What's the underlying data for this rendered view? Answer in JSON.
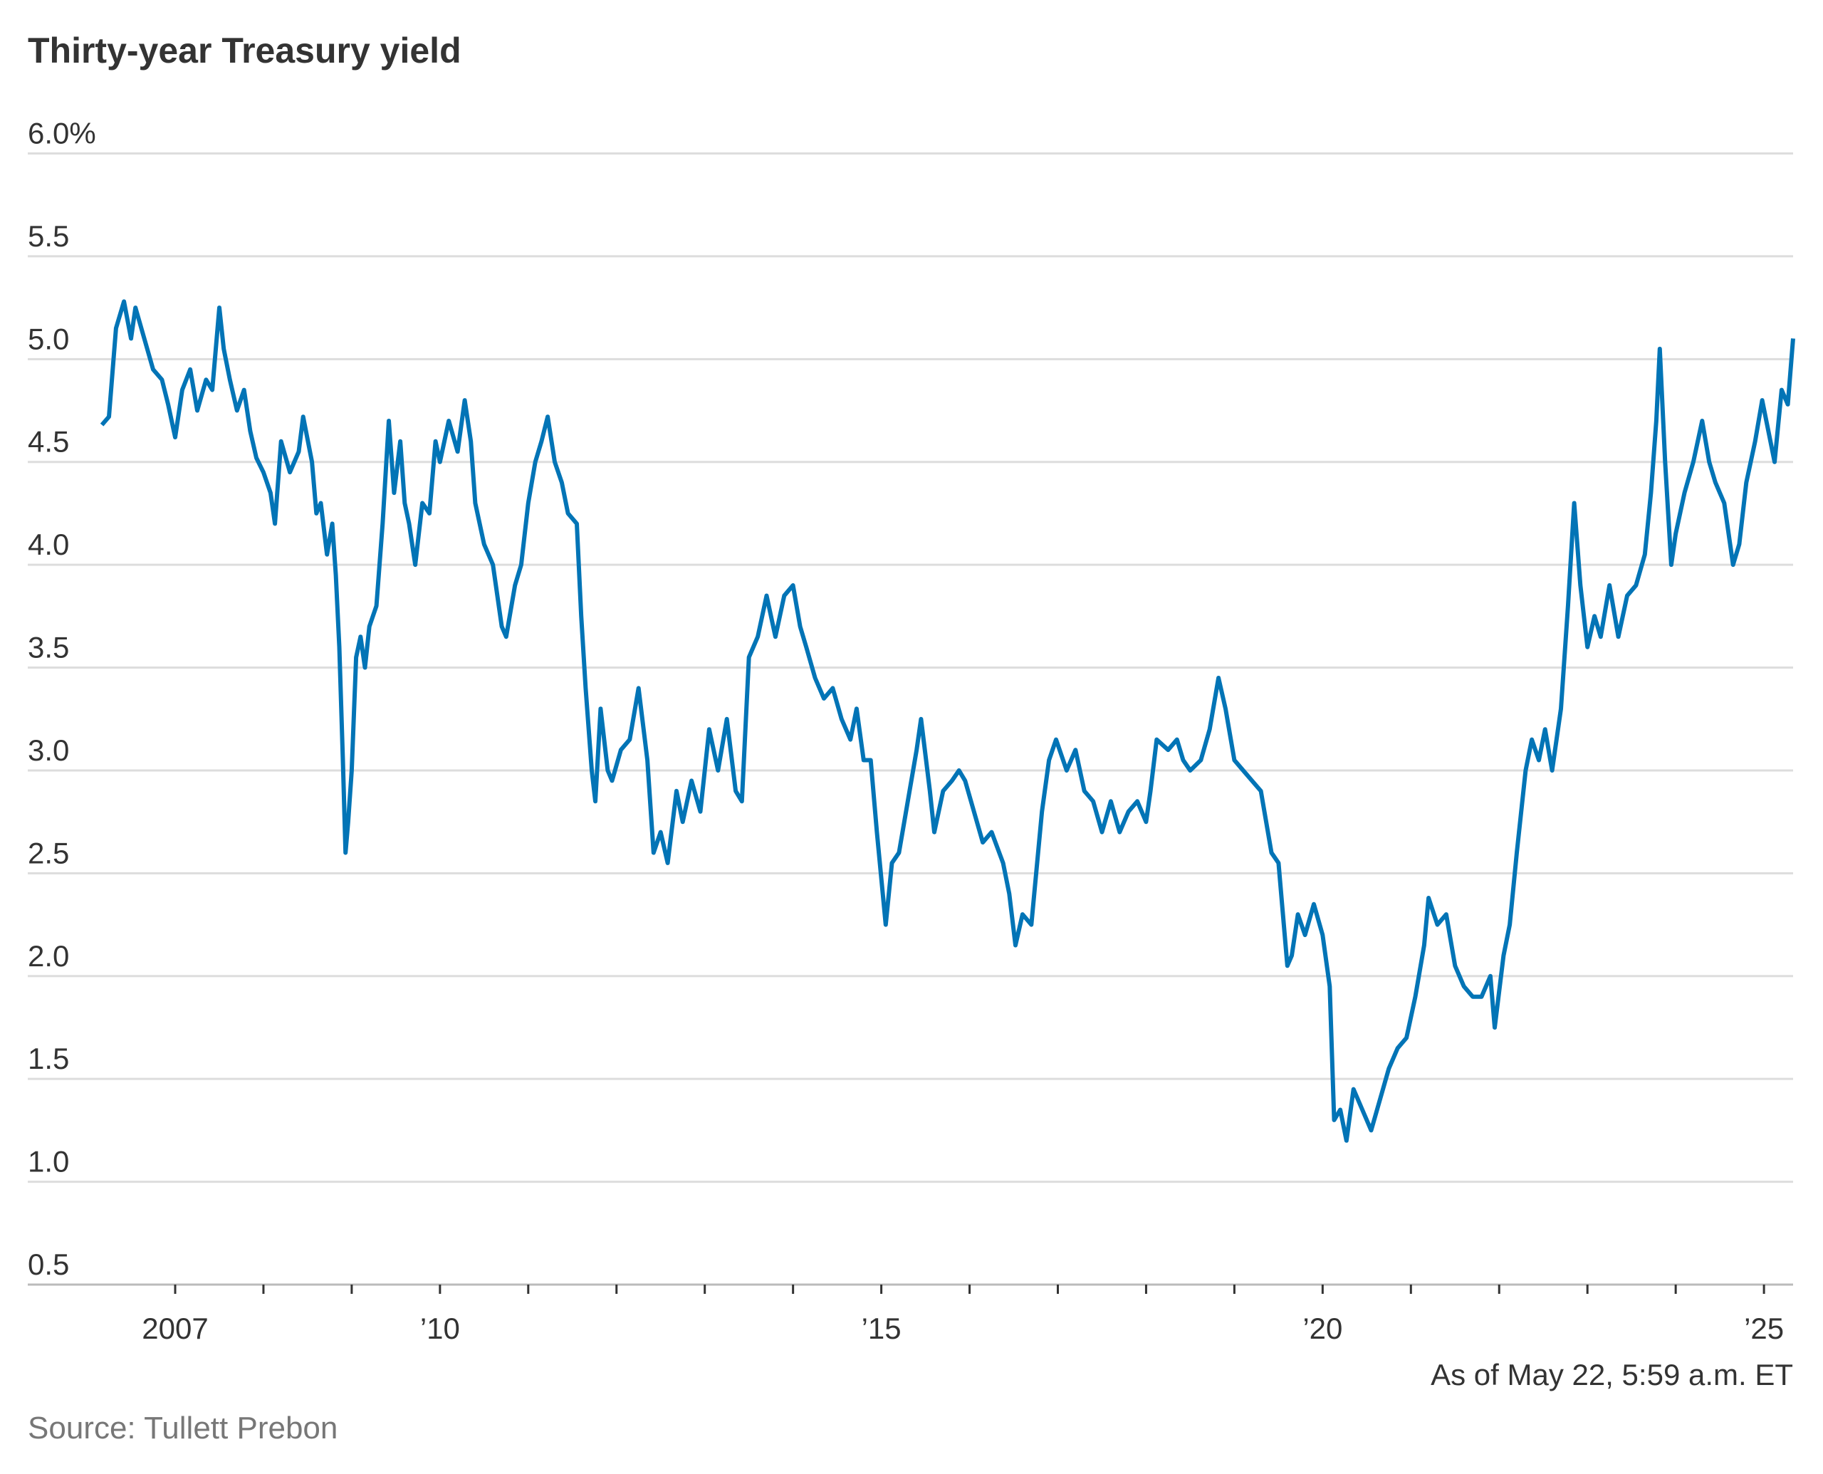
{
  "chart_data": {
    "type": "line",
    "title": "Thirty-year Treasury yield",
    "annotation": "As of May 22, 5:59 a.m. ET",
    "source": "Source: Tullett Prebon",
    "color": "#0274b6",
    "grid": true,
    "xlim": [
      2005.33,
      2025.33
    ],
    "xticks": [
      2007,
      {
        "value": 2010,
        "label": "’10"
      },
      {
        "value": 2015,
        "label": "’15"
      },
      {
        "value": 2020,
        "label": "’20"
      },
      {
        "value": 2025,
        "label": "’25"
      }
    ],
    "xminorticks": [
      2008,
      2009,
      2011,
      2012,
      2013,
      2014,
      2016,
      2017,
      2018,
      2019,
      2021,
      2022,
      2023,
      2024
    ],
    "ylim": [
      0.5,
      6
    ],
    "yticks": [
      0.5,
      {
        "value": 1,
        "label": "1.0"
      },
      1.5,
      {
        "value": 2,
        "label": "2.0"
      },
      2.5,
      {
        "value": 3,
        "label": "3.0"
      },
      3.5,
      {
        "value": 4,
        "label": "4.0"
      },
      4.5,
      {
        "value": 5,
        "label": "5.0"
      },
      5.5,
      {
        "value": 6,
        "label": "6.0%"
      }
    ],
    "x": [
      2006.17,
      2006.25,
      2006.33,
      2006.42,
      2006.5,
      2006.55,
      2006.65,
      2006.75,
      2006.85,
      2006.92,
      2007.0,
      2007.08,
      2007.17,
      2007.25,
      2007.35,
      2007.42,
      2007.5,
      2007.55,
      2007.62,
      2007.7,
      2007.78,
      2007.85,
      2007.92,
      2008.0,
      2008.08,
      2008.13,
      2008.2,
      2008.3,
      2008.4,
      2008.45,
      2008.55,
      2008.6,
      2008.65,
      2008.72,
      2008.78,
      2008.82,
      2008.86,
      2008.9,
      2008.93,
      2008.96,
      2009.0,
      2009.05,
      2009.1,
      2009.15,
      2009.2,
      2009.28,
      2009.35,
      2009.42,
      2009.48,
      2009.55,
      2009.6,
      2009.65,
      2009.72,
      2009.8,
      2009.88,
      2009.95,
      2010.0,
      2010.1,
      2010.2,
      2010.28,
      2010.35,
      2010.4,
      2010.5,
      2010.6,
      2010.7,
      2010.75,
      2010.85,
      2010.92,
      2011.0,
      2011.08,
      2011.15,
      2011.22,
      2011.3,
      2011.38,
      2011.45,
      2011.55,
      2011.6,
      2011.65,
      2011.72,
      2011.76,
      2011.82,
      2011.9,
      2011.95,
      2012.05,
      2012.15,
      2012.25,
      2012.35,
      2012.42,
      2012.5,
      2012.58,
      2012.68,
      2012.75,
      2012.85,
      2012.95,
      2013.05,
      2013.15,
      2013.25,
      2013.35,
      2013.42,
      2013.5,
      2013.6,
      2013.7,
      2013.8,
      2013.9,
      2014.0,
      2014.08,
      2014.15,
      2014.25,
      2014.35,
      2014.45,
      2014.55,
      2014.65,
      2014.72,
      2014.8,
      2014.88,
      2014.95,
      2015.05,
      2015.12,
      2015.2,
      2015.3,
      2015.4,
      2015.45,
      2015.55,
      2015.6,
      2015.7,
      2015.8,
      2015.88,
      2015.95,
      2016.05,
      2016.15,
      2016.25,
      2016.38,
      2016.45,
      2016.52,
      2016.6,
      2016.7,
      2016.82,
      2016.9,
      2016.98,
      2017.1,
      2017.2,
      2017.3,
      2017.4,
      2017.5,
      2017.6,
      2017.7,
      2017.8,
      2017.9,
      2018.0,
      2018.05,
      2018.12,
      2018.25,
      2018.35,
      2018.42,
      2018.5,
      2018.62,
      2018.72,
      2018.82,
      2018.9,
      2019.0,
      2019.1,
      2019.2,
      2019.3,
      2019.42,
      2019.5,
      2019.6,
      2019.65,
      2019.72,
      2019.8,
      2019.9,
      2020.0,
      2020.08,
      2020.13,
      2020.2,
      2020.27,
      2020.35,
      2020.45,
      2020.55,
      2020.65,
      2020.75,
      2020.85,
      2020.95,
      2021.05,
      2021.15,
      2021.2,
      2021.3,
      2021.4,
      2021.5,
      2021.6,
      2021.7,
      2021.8,
      2021.9,
      2021.95,
      2022.05,
      2022.12,
      2022.2,
      2022.3,
      2022.37,
      2022.45,
      2022.52,
      2022.6,
      2022.7,
      2022.78,
      2022.85,
      2022.92,
      2023.0,
      2023.08,
      2023.15,
      2023.25,
      2023.35,
      2023.45,
      2023.55,
      2023.65,
      2023.72,
      2023.78,
      2023.82,
      2023.88,
      2023.95,
      2024.0,
      2024.1,
      2024.2,
      2024.3,
      2024.38,
      2024.45,
      2024.55,
      2024.65,
      2024.72,
      2024.8,
      2024.9,
      2024.98,
      2025.05,
      2025.12,
      2025.2,
      2025.27,
      2025.33
    ],
    "values": [
      4.68,
      4.72,
      5.15,
      5.28,
      5.1,
      5.25,
      5.1,
      4.95,
      4.9,
      4.78,
      4.62,
      4.85,
      4.95,
      4.75,
      4.9,
      4.85,
      5.25,
      5.05,
      4.9,
      4.75,
      4.85,
      4.65,
      4.52,
      4.45,
      4.35,
      4.2,
      4.6,
      4.45,
      4.55,
      4.72,
      4.5,
      4.25,
      4.3,
      4.05,
      4.2,
      3.95,
      3.6,
      3.05,
      2.6,
      2.75,
      3.0,
      3.55,
      3.65,
      3.5,
      3.7,
      3.8,
      4.2,
      4.7,
      4.35,
      4.6,
      4.3,
      4.2,
      4.0,
      4.3,
      4.25,
      4.6,
      4.5,
      4.7,
      4.55,
      4.8,
      4.6,
      4.3,
      4.1,
      4.0,
      3.7,
      3.65,
      3.9,
      4.0,
      4.3,
      4.5,
      4.6,
      4.72,
      4.5,
      4.4,
      4.25,
      4.2,
      3.75,
      3.4,
      3.0,
      2.85,
      3.3,
      3.0,
      2.95,
      3.1,
      3.15,
      3.4,
      3.05,
      2.6,
      2.7,
      2.55,
      2.9,
      2.75,
      2.95,
      2.8,
      3.2,
      3.0,
      3.25,
      2.9,
      2.85,
      3.55,
      3.65,
      3.85,
      3.65,
      3.85,
      3.9,
      3.7,
      3.6,
      3.45,
      3.35,
      3.4,
      3.25,
      3.15,
      3.3,
      3.05,
      3.05,
      2.7,
      2.25,
      2.55,
      2.6,
      2.85,
      3.1,
      3.25,
      2.9,
      2.7,
      2.9,
      2.95,
      3.0,
      2.95,
      2.8,
      2.65,
      2.7,
      2.55,
      2.4,
      2.15,
      2.3,
      2.25,
      2.8,
      3.05,
      3.15,
      3.0,
      3.1,
      2.9,
      2.85,
      2.7,
      2.85,
      2.7,
      2.8,
      2.85,
      2.75,
      2.9,
      3.15,
      3.1,
      3.15,
      3.05,
      3.0,
      3.05,
      3.2,
      3.45,
      3.3,
      3.05,
      3.0,
      2.95,
      2.9,
      2.6,
      2.55,
      2.05,
      2.1,
      2.3,
      2.2,
      2.35,
      2.2,
      1.95,
      1.3,
      1.35,
      1.2,
      1.45,
      1.35,
      1.25,
      1.4,
      1.55,
      1.65,
      1.7,
      1.9,
      2.15,
      2.38,
      2.25,
      2.3,
      2.05,
      1.95,
      1.9,
      1.9,
      2.0,
      1.75,
      2.1,
      2.25,
      2.6,
      3.0,
      3.15,
      3.05,
      3.2,
      3.0,
      3.3,
      3.8,
      4.3,
      3.9,
      3.6,
      3.75,
      3.65,
      3.9,
      3.65,
      3.85,
      3.9,
      4.05,
      4.35,
      4.7,
      5.05,
      4.5,
      4.0,
      4.15,
      4.35,
      4.5,
      4.7,
      4.5,
      4.4,
      4.3,
      4.0,
      4.1,
      4.4,
      4.6,
      4.8,
      4.65,
      4.5,
      4.85,
      4.78,
      5.1
    ]
  }
}
